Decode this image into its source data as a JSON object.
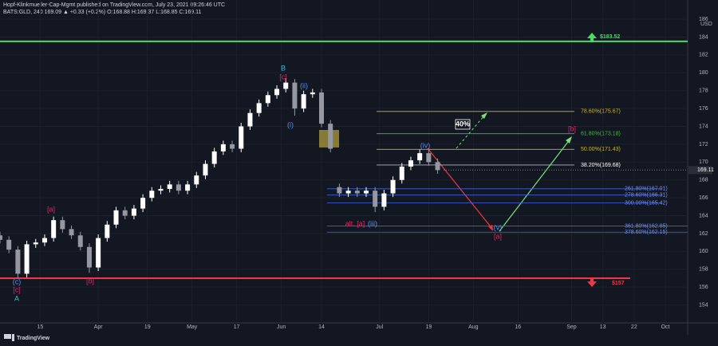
{
  "chart_data": {
    "type": "candlestick",
    "publisher": "Hopf-Klinkmueller-Cap-Mgmt published on TradingView.com, July 23, 2021 09:26:46 UTC",
    "symbol_line": "BATS:GLD, 240  169.09  ▲ +0.33 (+0.2%)  O:168.88  H:169.37  L:168.85  C:169.11",
    "currency": "USD",
    "brand": "TradingView",
    "up_color": "#ffffff",
    "down_color": "#9598a1",
    "grid": true,
    "x": [
      1,
      3,
      5,
      7,
      9,
      11,
      13,
      15,
      17,
      19,
      21,
      23,
      25,
      27,
      29,
      31,
      33,
      35,
      37,
      39,
      41,
      43,
      45,
      47,
      49,
      51,
      53,
      55,
      57,
      59,
      61,
      63,
      65,
      67,
      69,
      71,
      73,
      75,
      77,
      79,
      81,
      83,
      85,
      87,
      89,
      91,
      93,
      95,
      97,
      99
    ],
    "open": [
      161.8,
      161.3,
      160.2,
      157.5,
      160.8,
      161.0,
      161.5,
      163.5,
      162.5,
      161.8,
      160.5,
      158.2,
      161.5,
      163.0,
      164.6,
      164.0,
      164.8,
      166.0,
      166.8,
      167.0,
      167.5,
      166.8,
      167.5,
      168.5,
      169.8,
      171.2,
      172.0,
      171.5,
      174.0,
      175.5,
      176.6,
      177.5,
      178.2,
      178.9,
      176.0,
      177.6,
      177.8,
      174.3,
      167.2,
      166.5,
      166.8,
      166.5,
      166.8,
      165.0,
      166.5,
      168.0,
      169.5,
      170.2,
      171.0,
      170.0
    ],
    "high": [
      162.2,
      161.7,
      160.6,
      161.2,
      161.4,
      161.9,
      163.9,
      163.9,
      162.9,
      162.2,
      160.9,
      161.9,
      163.4,
      165.0,
      165.0,
      165.2,
      166.4,
      167.2,
      167.4,
      167.9,
      167.9,
      167.9,
      168.9,
      170.2,
      171.6,
      172.4,
      172.4,
      174.4,
      175.9,
      177.0,
      177.9,
      178.6,
      179.4,
      179.3,
      178.0,
      178.2,
      178.2,
      174.7,
      167.6,
      167.2,
      167.2,
      167.2,
      167.2,
      166.9,
      168.4,
      169.9,
      170.6,
      171.4,
      171.4,
      170.4
    ],
    "low": [
      160.9,
      159.8,
      157.0,
      157.1,
      160.4,
      160.6,
      161.1,
      162.1,
      161.4,
      160.1,
      157.6,
      157.8,
      161.1,
      162.6,
      163.6,
      163.6,
      164.4,
      165.6,
      166.4,
      166.6,
      166.4,
      166.4,
      167.1,
      168.1,
      169.4,
      170.8,
      171.1,
      171.1,
      173.6,
      175.1,
      176.2,
      177.1,
      177.8,
      175.2,
      175.6,
      177.2,
      173.9,
      171.1,
      166.1,
      166.1,
      166.1,
      166.1,
      164.4,
      164.6,
      166.1,
      167.6,
      169.1,
      169.8,
      169.6,
      168.7
    ],
    "close": [
      161.3,
      160.2,
      157.5,
      160.8,
      161.0,
      161.5,
      163.5,
      162.5,
      161.8,
      160.5,
      158.2,
      161.5,
      163.0,
      164.6,
      164.0,
      164.8,
      166.0,
      166.8,
      167.0,
      167.5,
      166.8,
      167.5,
      168.5,
      169.8,
      171.2,
      172.0,
      171.5,
      174.0,
      175.5,
      176.6,
      177.5,
      178.2,
      178.9,
      176.0,
      177.6,
      177.8,
      174.3,
      171.5,
      166.5,
      166.8,
      166.5,
      166.8,
      165.0,
      166.5,
      168.0,
      169.5,
      170.2,
      171.0,
      170.0,
      169.1
    ],
    "xlim": [
      1,
      155
    ],
    "xticks": [
      {
        "value": 10,
        "label": "15"
      },
      {
        "value": 23,
        "label": "Apr"
      },
      {
        "value": 34,
        "label": "19"
      },
      {
        "value": 44,
        "label": "May"
      },
      {
        "value": 54,
        "label": "17"
      },
      {
        "value": 64,
        "label": "Jun"
      },
      {
        "value": 73,
        "label": "14"
      },
      {
        "value": 86,
        "label": "Jul"
      },
      {
        "value": 97,
        "label": "19"
      },
      {
        "value": 107,
        "label": "Aug"
      },
      {
        "value": 117,
        "label": "16"
      },
      {
        "value": 129,
        "label": "Sep"
      },
      {
        "value": 136,
        "label": "13"
      },
      {
        "value": 143,
        "label": "22"
      },
      {
        "value": 150,
        "label": "Oct"
      }
    ],
    "ylim": [
      152,
      186.9
    ],
    "yticks": [
      154,
      156,
      158,
      160,
      162,
      164,
      166,
      168,
      170,
      172,
      174,
      176,
      178,
      180,
      182,
      184,
      186
    ],
    "last_price": 169.11,
    "levels": [
      {
        "label": "$183.52",
        "value": 183.52,
        "color": "#4cd964"
      },
      {
        "label": "$157",
        "value": 157,
        "color": "#f23645"
      }
    ],
    "fib_levels": [
      {
        "label": "78.60%(175.67)",
        "value": 175.67,
        "color": "#c8b43c"
      },
      {
        "label": "61.80%(173.18)",
        "value": 173.18,
        "color": "#4caf50"
      },
      {
        "label": "50.00%(171.43)",
        "value": 171.43,
        "color": "#c8b43c"
      },
      {
        "label": "38.20%(169.68)",
        "value": 169.68,
        "color": "#b2b5be"
      },
      {
        "label": "261.80%(167.01)",
        "value": 167.01,
        "color": "#3f63e0"
      },
      {
        "label": "278.60%(166.31)",
        "value": 166.31,
        "color": "#3f63e0"
      },
      {
        "label": "300.00%(165.42)",
        "value": 165.42,
        "color": "#3f63e0"
      },
      {
        "label": "361.80%(162.85)",
        "value": 162.85,
        "color": "#3f63e0"
      },
      {
        "label": "378.60%(162.15)",
        "value": 162.15,
        "color": "#3f63e0"
      }
    ],
    "wave_labels": [
      {
        "text": "B",
        "color": "#26c6da"
      },
      {
        "text": "[c]",
        "color": "#e91e63"
      },
      {
        "text": "(ii)",
        "color": "#5b8def"
      },
      {
        "text": "(i)",
        "color": "#5b8def"
      },
      {
        "text": "[a]",
        "color": "#e91e63"
      },
      {
        "text": "(c)",
        "color": "#5b8def"
      },
      {
        "text": "[c]",
        "color": "#e91e63"
      },
      {
        "text": "A",
        "color": "#26c6da"
      },
      {
        "text": "[b]",
        "color": "#e91e63"
      },
      {
        "text": "(iv)",
        "color": "#5b8def"
      },
      {
        "text": "alt. [a]",
        "color": "#e91e63"
      },
      {
        "text": "(iii)",
        "color": "#5b8def"
      },
      {
        "text": "(v)",
        "color": "#5b8def"
      },
      {
        "text": "[a]",
        "color": "#e91e63"
      },
      {
        "text": "[b]",
        "color": "#e91e63"
      },
      {
        "text": "40%",
        "color": "#ffffff"
      }
    ]
  }
}
